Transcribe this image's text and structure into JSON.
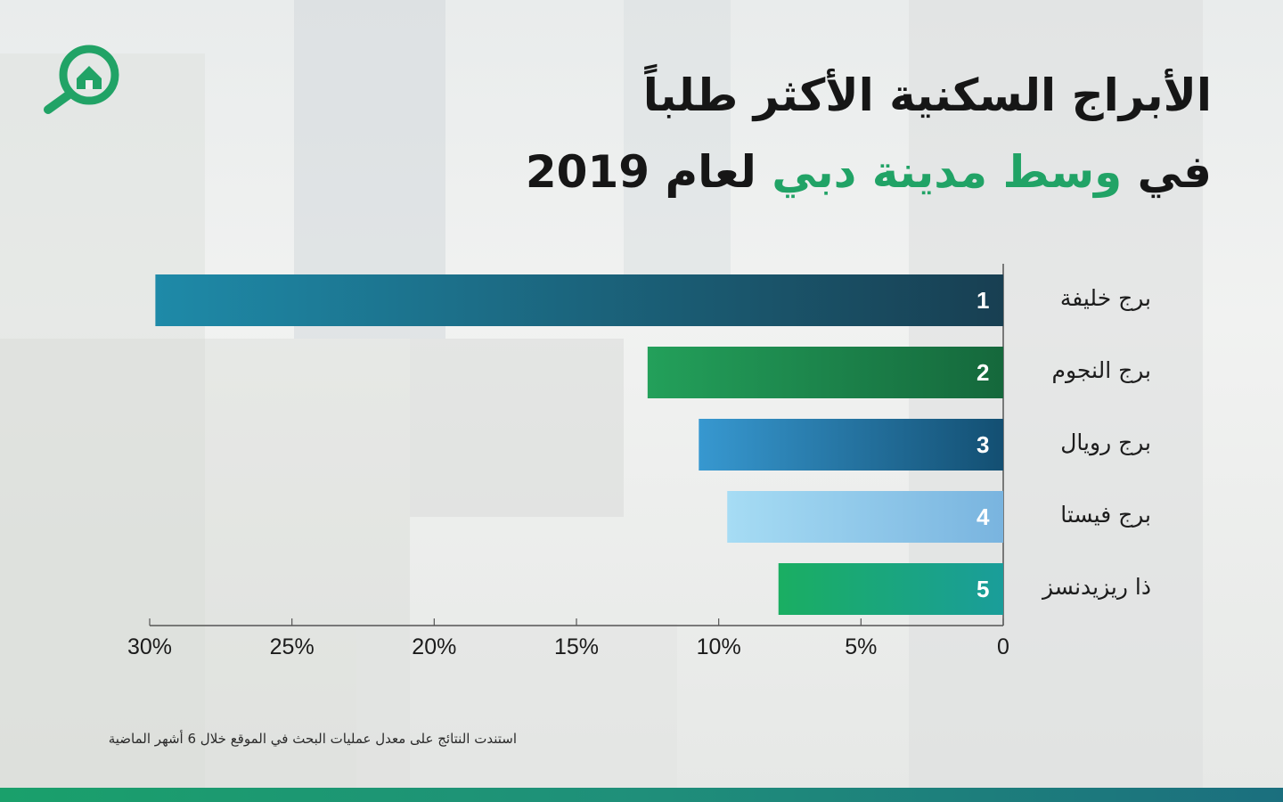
{
  "title": {
    "line1": "الأبراج السكنية الأكثر طلباً",
    "line2_part1": "في ",
    "line2_accent": "وسط مدينة دبي",
    "line2_part2": " لعام 2019"
  },
  "note": "استندت النتائج على معدل عمليات البحث في الموقع خلال 6 أشهر الماضية",
  "colors": {
    "accent": "#21a366",
    "footer": "#1a8f7a"
  },
  "chart_data": {
    "type": "bar",
    "orientation": "horizontal",
    "categories": [
      "برج خليفة",
      "برج النجوم",
      "برج رويال",
      "برج فيستا",
      "ذا ريزيدنسز"
    ],
    "ranks": [
      "1",
      "2",
      "3",
      "4",
      "5"
    ],
    "values": [
      29.8,
      12.5,
      10.7,
      9.7,
      7.9
    ],
    "value_unit": "%",
    "xlim": [
      0,
      30
    ],
    "ticks": [
      {
        "value": 0,
        "label": "0"
      },
      {
        "value": 5,
        "label": "5%"
      },
      {
        "value": 10,
        "label": "10%"
      },
      {
        "value": 15,
        "label": "15%"
      },
      {
        "value": 20,
        "label": "20%"
      },
      {
        "value": 25,
        "label": "25%"
      },
      {
        "value": 30,
        "label": "30%"
      }
    ],
    "bar_colors": [
      [
        "#1e8aa8",
        "#183f52"
      ],
      [
        "#23a05a",
        "#15683c"
      ],
      [
        "#3798d0",
        "#134f72"
      ],
      [
        "#a6dcf4",
        "#79b4df"
      ],
      [
        "#1aae62",
        "#1a9d9a"
      ]
    ],
    "axis_direction": "right-to-left",
    "grid": false,
    "legend": "none"
  }
}
